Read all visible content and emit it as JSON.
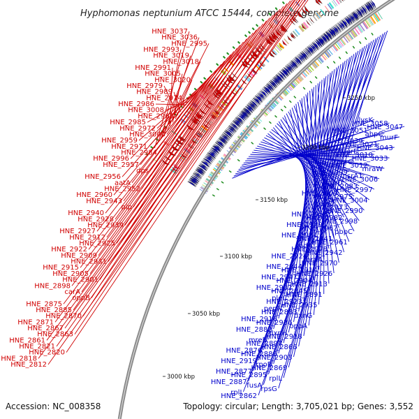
{
  "title": "Hyphomonas neptunium ATCC 15444, complete genome",
  "footer": {
    "accession": "Accession: NC_008358",
    "topology": "Topology: circular; Length: 3,705,021 bp; Genes: 3,552"
  },
  "scale_ticks": [
    "3250 kbp",
    "3200 kbp",
    "3150 kbp",
    "3100 kbp",
    "3050 kbp",
    "3000 kbp"
  ],
  "colors": {
    "reverse_strand": "#d00000",
    "forward_strand": "#0000cc",
    "backbone": "#8c8c8c",
    "gc_mark": "#1a8a1a"
  },
  "left_labels": [
    "HNE_3037",
    "HNE_3036",
    "HNE_2995",
    "HNE_2993",
    "HNE_3019",
    "HNE_3018",
    "HNE_2991",
    "HNE_3005",
    "HNE_3020",
    "HNE_2979",
    "HNE_2989",
    "HNE_2974",
    "HNE_2986",
    "HNE_3008",
    "HNE_2965",
    "HNE_2985",
    "HNE_2972",
    "HNE_3000",
    "HNE_2959",
    "HNE_2971",
    "HNE_2984",
    "HNE_2996",
    "HNE_2957",
    "dps",
    "HNE_2956",
    "aatA",
    "HNE_2952",
    "HNE_2960",
    "HNE_2943",
    "pip",
    "HNE_2940",
    "HNE_2928",
    "HNE_2939",
    "HNE_2927",
    "HNE_2912",
    "HNE_2925",
    "HNE_2922",
    "HNE_2909",
    "HNE_2931",
    "HNE_2915",
    "HNE_2905",
    "HNE_2901",
    "HNE_2898",
    "carA",
    "oppB",
    "HNE_2875",
    "HNE_2885",
    "HNE_2870",
    "HNE_2871",
    "HNE_2867",
    "HNE_2863",
    "HNE_2861",
    "HNE_2821",
    "HNE_2820",
    "HNE_2818",
    "HNE_2812"
  ],
  "right_labels": [
    "lysK",
    "HNE_3058",
    "HNE_3047",
    "HNE_3051",
    "ahpC",
    "murF",
    "HNE_3039",
    "HNE_3021",
    "HNE_3043",
    "murE",
    "HNE_3010",
    "HNE_3033",
    "murC",
    "HNE_3012",
    "mraW",
    "HNE_2999",
    "msrA1",
    "HNE_3006",
    "murD",
    "HNE_2983",
    "HNE_2997",
    "HNE_3009",
    "HNE_2975",
    "HNE_3004",
    "uvrC",
    "HNE_2973",
    "HNE_2990",
    "HNE_2958",
    "HNE_2982",
    "HNE_2998",
    "HNE_2949",
    "HNE_2967",
    "pbpC",
    "HNE_2981",
    "HNE_2941",
    "HNE_2961",
    "rodA",
    "HNE_2978",
    "HNE_2942",
    "HNE_2924",
    "mrdA",
    "HNE_2970",
    "HNE_2944",
    "HNE_2914",
    "HNE_2926",
    "HNE_2947",
    "HNE_2904",
    "HNE_2913",
    "HNE_2932",
    "HNE_2945",
    "HNE_2891",
    "pleC",
    "HNE_2923",
    "HNE_2935",
    "pepN",
    "HNE_2883",
    "dxnG",
    "HNE_2916",
    "HNE_2936",
    "oppA",
    "HNE_2882",
    "dxnH",
    "HNE_2918",
    "mreB",
    "HNE_2897",
    "HNE_2866",
    "HNE_2876",
    "HNE_2886",
    "HNE_2903",
    "HNE_2919",
    "rpoB",
    "HNE_2869",
    "HNE_2877",
    "HNE_2895",
    "rplL",
    "HNE_2887",
    "fusA",
    "rpsG",
    "rplJ",
    "HNE_2862"
  ]
}
